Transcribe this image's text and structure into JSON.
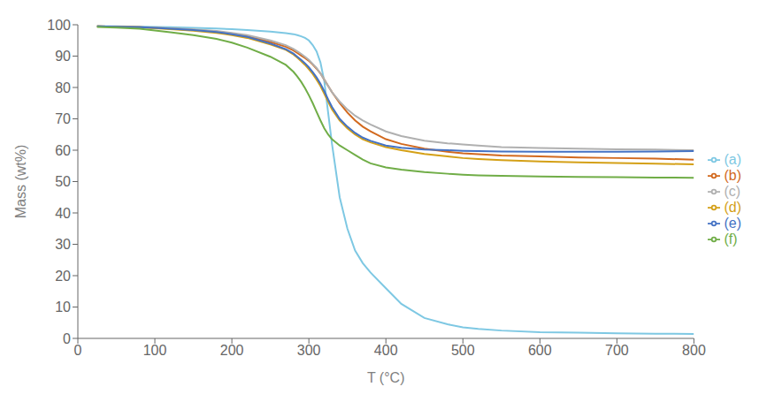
{
  "chart_data": {
    "type": "line",
    "x": [
      25,
      50,
      80,
      100,
      120,
      150,
      180,
      200,
      220,
      250,
      270,
      280,
      285,
      290,
      295,
      300,
      305,
      310,
      315,
      320,
      325,
      330,
      340,
      350,
      360,
      370,
      380,
      400,
      420,
      450,
      480,
      500,
      520,
      550,
      600,
      650,
      700,
      750,
      800
    ],
    "series": [
      {
        "name": "(a)",
        "color": "#7EC8E3",
        "values": [
          99.5,
          99.5,
          99.4,
          99.3,
          99.2,
          99.0,
          98.8,
          98.6,
          98.3,
          97.8,
          97.3,
          97.0,
          96.7,
          96.3,
          95.8,
          95.0,
          93.5,
          91.5,
          88.0,
          82.0,
          72.0,
          62.0,
          45.0,
          35.0,
          28.0,
          24.0,
          21.0,
          16.0,
          11.0,
          6.5,
          4.5,
          3.5,
          3.0,
          2.5,
          2.0,
          1.8,
          1.6,
          1.5,
          1.4
        ]
      },
      {
        "name": "(b)",
        "color": "#D2691E",
        "values": [
          99.5,
          99.4,
          99.2,
          99.0,
          98.8,
          98.4,
          97.8,
          97.2,
          96.4,
          94.5,
          93.0,
          91.8,
          91.0,
          90.2,
          89.4,
          88.5,
          87.3,
          86.0,
          84.5,
          82.5,
          80.5,
          78.5,
          75.0,
          72.0,
          69.5,
          67.5,
          66.0,
          63.5,
          62.0,
          60.5,
          59.5,
          59.0,
          58.7,
          58.3,
          58.0,
          57.7,
          57.5,
          57.3,
          57.0
        ]
      },
      {
        "name": "(c)",
        "color": "#B0B0B0",
        "values": [
          99.5,
          99.4,
          99.3,
          99.1,
          98.9,
          98.5,
          98.0,
          97.4,
          96.7,
          95.0,
          93.5,
          92.3,
          91.5,
          90.7,
          89.8,
          88.8,
          87.5,
          86.2,
          84.5,
          82.5,
          80.5,
          78.5,
          75.5,
          73.0,
          71.0,
          69.5,
          68.2,
          66.0,
          64.5,
          63.0,
          62.2,
          61.8,
          61.5,
          61.0,
          60.7,
          60.5,
          60.3,
          60.2,
          60.0
        ]
      },
      {
        "name": "(d)",
        "color": "#D4A017",
        "values": [
          99.5,
          99.4,
          99.2,
          98.9,
          98.6,
          98.1,
          97.4,
          96.7,
          95.8,
          93.7,
          92.0,
          90.5,
          89.5,
          88.4,
          87.2,
          85.8,
          84.3,
          82.5,
          80.5,
          78.0,
          75.5,
          73.0,
          69.5,
          67.0,
          65.0,
          63.5,
          62.5,
          61.0,
          60.0,
          58.8,
          58.0,
          57.5,
          57.2,
          56.8,
          56.4,
          56.1,
          55.9,
          55.7,
          55.5
        ]
      },
      {
        "name": "(e)",
        "color": "#4472C4",
        "values": [
          99.5,
          99.4,
          99.2,
          99.0,
          98.7,
          98.3,
          97.7,
          97.0,
          96.1,
          94.0,
          92.2,
          90.8,
          89.8,
          88.8,
          87.7,
          86.4,
          84.9,
          83.2,
          81.2,
          78.8,
          76.2,
          73.8,
          70.0,
          67.5,
          65.5,
          64.0,
          63.0,
          61.5,
          60.8,
          60.2,
          60.0,
          59.8,
          59.7,
          59.6,
          59.5,
          59.5,
          59.5,
          59.6,
          59.7
        ]
      },
      {
        "name": "(f)",
        "color": "#70AD47",
        "values": [
          99.3,
          99.1,
          98.7,
          98.2,
          97.6,
          96.7,
          95.5,
          94.3,
          92.7,
          89.8,
          87.2,
          85.0,
          83.5,
          81.8,
          79.8,
          77.5,
          75.0,
          72.2,
          69.5,
          67.0,
          65.0,
          63.5,
          61.5,
          60.0,
          58.5,
          57.0,
          55.8,
          54.5,
          53.8,
          53.0,
          52.5,
          52.2,
          52.0,
          51.8,
          51.6,
          51.5,
          51.4,
          51.3,
          51.2
        ]
      }
    ],
    "xlabel": "T (°C)",
    "ylabel": "Mass (wt%)",
    "xlim": [
      0,
      800
    ],
    "ylim": [
      0,
      100
    ],
    "xticks": [
      0,
      100,
      200,
      300,
      400,
      500,
      600,
      700,
      800
    ],
    "yticks": [
      0,
      10,
      20,
      30,
      40,
      50,
      60,
      70,
      80,
      90,
      100
    ],
    "grid": false,
    "legend": "right"
  }
}
